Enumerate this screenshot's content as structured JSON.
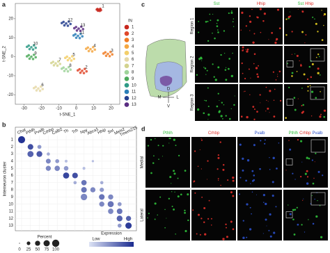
{
  "chart_data": [
    {
      "type": "scatter",
      "panel_label": "a",
      "xlabel": "t-SNE_1",
      "ylabel": "t-SNE_2",
      "legend_title": "IN",
      "xlim": [
        -35,
        25
      ],
      "ylim": [
        -25,
        28
      ],
      "xticks": [
        -30,
        -20,
        -10,
        0,
        10,
        20
      ],
      "yticks": [
        -20,
        -10,
        0,
        10,
        20
      ],
      "series": [
        {
          "name": "1",
          "color": "#c8281e",
          "x": [
            13,
            13.8,
            12.2,
            13.5,
            12.5,
            14.2,
            11.8
          ],
          "y": [
            24.7,
            25.2,
            25.1,
            24.1,
            24.2,
            24.5,
            24.8
          ]
        },
        {
          "name": "2",
          "color": "#e0472a",
          "x": [
            3.4,
            4.9,
            1.9,
            4.4,
            2.4,
            5.9,
            0.9
          ],
          "y": [
            -7.4,
            -6.4,
            -6.6,
            -8.6,
            -8.4,
            -7.7,
            -7.2
          ]
        },
        {
          "name": "3",
          "color": "#f07c24",
          "x": [
            18.2,
            19.7,
            16.7,
            19.2,
            17.2,
            20.7,
            15.7
          ],
          "y": [
            1.5,
            2.5,
            2.3,
            0.3,
            0.5,
            1.2,
            1.7
          ]
        },
        {
          "name": "4",
          "color": "#f5a742",
          "x": [
            8.2,
            9.7,
            6.7,
            9.2,
            7.2,
            10.7,
            5.7
          ],
          "y": [
            4,
            5,
            4.8,
            2.8,
            3,
            3.7,
            4.2
          ]
        },
        {
          "name": "5",
          "color": "#f3cf6a",
          "x": [
            -3.8,
            -2.3,
            -5.3,
            -2.8,
            -4.8,
            -1.3,
            -6.3
          ],
          "y": [
            -0.8,
            0.2,
            0,
            -2,
            -1.8,
            -1.1,
            -0.6
          ]
        },
        {
          "name": "6",
          "color": "#e6d9a8",
          "x": [
            -21.8,
            -20.3,
            -23.3,
            -20.8,
            -22.8,
            -19.3,
            -24.3
          ],
          "y": [
            -16.7,
            -15.7,
            -15.9,
            -17.9,
            -17.7,
            -17,
            -16.5
          ]
        },
        {
          "name": "7",
          "color": "#d3d38f",
          "x": [
            -11.8,
            -10.3,
            -13.3,
            -10.8,
            -12.8,
            -9.3,
            -14.3
          ],
          "y": [
            -3.5,
            -2.5,
            -2.7,
            -4.7,
            -4.5,
            -3.8,
            -3.3
          ]
        },
        {
          "name": "8",
          "color": "#9fd49a",
          "x": [
            -5.8,
            -4.3,
            -7.3,
            -4.8,
            -6.8,
            -3.3,
            -8.3
          ],
          "y": [
            -6.5,
            -5.5,
            -5.7,
            -7.7,
            -7.5,
            -6.8,
            -6.3
          ]
        },
        {
          "name": "9",
          "color": "#4daa5b",
          "x": [
            -25.8,
            -24.3,
            -27.3,
            -24.8,
            -26.8,
            -23.3,
            -28.3
          ],
          "y": [
            0,
            1,
            0.8,
            -1.2,
            -1,
            -0.3,
            0.2
          ]
        },
        {
          "name": "10",
          "color": "#2e9a86",
          "x": [
            -25.8,
            -24.3,
            -27.3,
            -24.8,
            -26.8,
            -23.3,
            -28.3
          ],
          "y": [
            5,
            6,
            5.8,
            3.8,
            4,
            4.7,
            5.2
          ]
        },
        {
          "name": "11",
          "color": "#2c7fb8",
          "x": [
            1,
            2.5,
            -0.5,
            2,
            0,
            3.5,
            -1.5
          ],
          "y": [
            11,
            12,
            11.8,
            9.8,
            10,
            10.7,
            11.2
          ]
        },
        {
          "name": "12",
          "color": "#25408f",
          "x": [
            -5.8,
            -4.3,
            -7.3,
            -4.8,
            -6.8,
            -3.3,
            -8.3
          ],
          "y": [
            17.5,
            18.5,
            18.3,
            16.3,
            16.5,
            17.2,
            17.7
          ]
        },
        {
          "name": "13",
          "color": "#5a2d82",
          "x": [
            1.4,
            2.9,
            -0.1,
            2.4,
            0.4,
            3.9,
            -1.1
          ],
          "y": [
            14.8,
            15.8,
            15.6,
            13.6,
            13.8,
            14.5,
            15
          ]
        }
      ]
    },
    {
      "type": "dotplot",
      "panel_label": "b",
      "ylabel": "Interneuron cluster",
      "categories": [
        "Chat",
        "Pthlh",
        "Pvalb",
        "Crhbp",
        "Calb2",
        "Th",
        "Trh",
        "Npy",
        "Abca1",
        "Hhip",
        "Sst",
        "Meis2",
        "Tmem215"
      ],
      "clusters": [
        1,
        2,
        3,
        4,
        5,
        6,
        7,
        8,
        9,
        10,
        11,
        12,
        13
      ],
      "percent": [
        [
          95,
          null,
          null,
          null,
          null,
          null,
          null,
          null,
          null,
          null,
          null,
          null,
          null
        ],
        [
          null,
          60,
          30,
          null,
          null,
          null,
          null,
          null,
          null,
          null,
          null,
          null,
          null
        ],
        [
          null,
          70,
          65,
          20,
          null,
          null,
          null,
          null,
          null,
          null,
          null,
          null,
          null
        ],
        [
          null,
          null,
          null,
          45,
          30,
          15,
          null,
          null,
          10,
          null,
          null,
          null,
          null
        ],
        [
          null,
          null,
          null,
          50,
          55,
          40,
          null,
          15,
          null,
          null,
          null,
          null,
          null
        ],
        [
          null,
          null,
          null,
          null,
          null,
          70,
          60,
          null,
          null,
          null,
          null,
          null,
          null
        ],
        [
          null,
          null,
          null,
          null,
          null,
          null,
          20,
          55,
          null,
          20,
          null,
          null,
          null
        ],
        [
          null,
          null,
          null,
          null,
          null,
          null,
          null,
          60,
          50,
          35,
          null,
          null,
          null
        ],
        [
          null,
          null,
          null,
          null,
          null,
          null,
          null,
          80,
          null,
          60,
          50,
          null,
          null
        ],
        [
          null,
          null,
          null,
          null,
          null,
          null,
          null,
          null,
          null,
          50,
          70,
          30,
          null
        ],
        [
          null,
          null,
          null,
          null,
          null,
          null,
          null,
          null,
          null,
          null,
          55,
          60,
          null
        ],
        [
          null,
          null,
          null,
          null,
          null,
          null,
          null,
          null,
          null,
          null,
          null,
          65,
          50
        ],
        [
          null,
          null,
          null,
          null,
          null,
          null,
          null,
          null,
          null,
          null,
          null,
          30,
          75
        ]
      ],
      "expression": [
        [
          0.95,
          null,
          null,
          null,
          null,
          null,
          null,
          null,
          null,
          null,
          null,
          null,
          null
        ],
        [
          null,
          0.8,
          0.4,
          null,
          null,
          null,
          null,
          null,
          null,
          null,
          null,
          null,
          null
        ],
        [
          null,
          0.7,
          0.75,
          0.3,
          null,
          null,
          null,
          null,
          null,
          null,
          null,
          null,
          null
        ],
        [
          null,
          null,
          null,
          0.5,
          0.4,
          0.2,
          null,
          null,
          0.2,
          null,
          null,
          null,
          null
        ],
        [
          null,
          null,
          null,
          0.5,
          0.5,
          0.4,
          null,
          0.2,
          null,
          null,
          null,
          null,
          null
        ],
        [
          null,
          null,
          null,
          null,
          null,
          0.85,
          0.8,
          null,
          null,
          null,
          null,
          null,
          null
        ],
        [
          null,
          null,
          null,
          null,
          null,
          null,
          0.3,
          0.6,
          null,
          0.3,
          null,
          null,
          null
        ],
        [
          null,
          null,
          null,
          null,
          null,
          null,
          null,
          0.6,
          0.5,
          0.4,
          null,
          null,
          null
        ],
        [
          null,
          null,
          null,
          null,
          null,
          null,
          null,
          0.5,
          null,
          0.6,
          0.5,
          null,
          null
        ],
        [
          null,
          null,
          null,
          null,
          null,
          null,
          null,
          null,
          null,
          0.5,
          0.6,
          0.4,
          null
        ],
        [
          null,
          null,
          null,
          null,
          null,
          null,
          null,
          null,
          null,
          null,
          0.5,
          0.6,
          null
        ],
        [
          null,
          null,
          null,
          null,
          null,
          null,
          null,
          null,
          null,
          null,
          null,
          0.7,
          0.7
        ],
        [
          null,
          null,
          null,
          null,
          null,
          null,
          null,
          null,
          null,
          null,
          null,
          0.4,
          0.9
        ]
      ],
      "color_scale": [
        "#dde3f5",
        "#1a2a8f"
      ],
      "size_legend": {
        "title": "Percent",
        "ticks": [
          0,
          25,
          50,
          75,
          100
        ]
      },
      "color_legend": {
        "title": "Expression",
        "low": "Low",
        "high": "High"
      }
    }
  ],
  "panel_c": {
    "panel_label": "c",
    "columns": [
      [
        {
          "text": "Sst",
          "color": "#2fbf3a"
        }
      ],
      [
        {
          "text": "Hhip",
          "color": "#e0302a"
        }
      ],
      [
        {
          "text": "Sst",
          "color": "#2fbf3a"
        },
        {
          "text": "Hhip",
          "color": "#e0302a"
        }
      ]
    ],
    "rows": [
      "Region 1",
      "Region 2",
      "Region 3"
    ],
    "orientation": {
      "up": "D",
      "down": "V",
      "left": "M",
      "right": "L"
    }
  },
  "panel_d": {
    "panel_label": "d",
    "columns": [
      [
        {
          "text": "Pthlh",
          "color": "#2fbf3a"
        }
      ],
      [
        {
          "text": "Crhbp",
          "color": "#e0302a"
        }
      ],
      [
        {
          "text": "Pvalb",
          "color": "#2a4fc8"
        }
      ],
      [
        {
          "text": "Pthlh",
          "color": "#2fbf3a"
        },
        {
          "text": "Crhbp",
          "color": "#e0302a"
        },
        {
          "text": "Pvalb",
          "color": "#2a4fc8"
        }
      ]
    ],
    "rows": [
      "Medial",
      "Lateral"
    ]
  }
}
